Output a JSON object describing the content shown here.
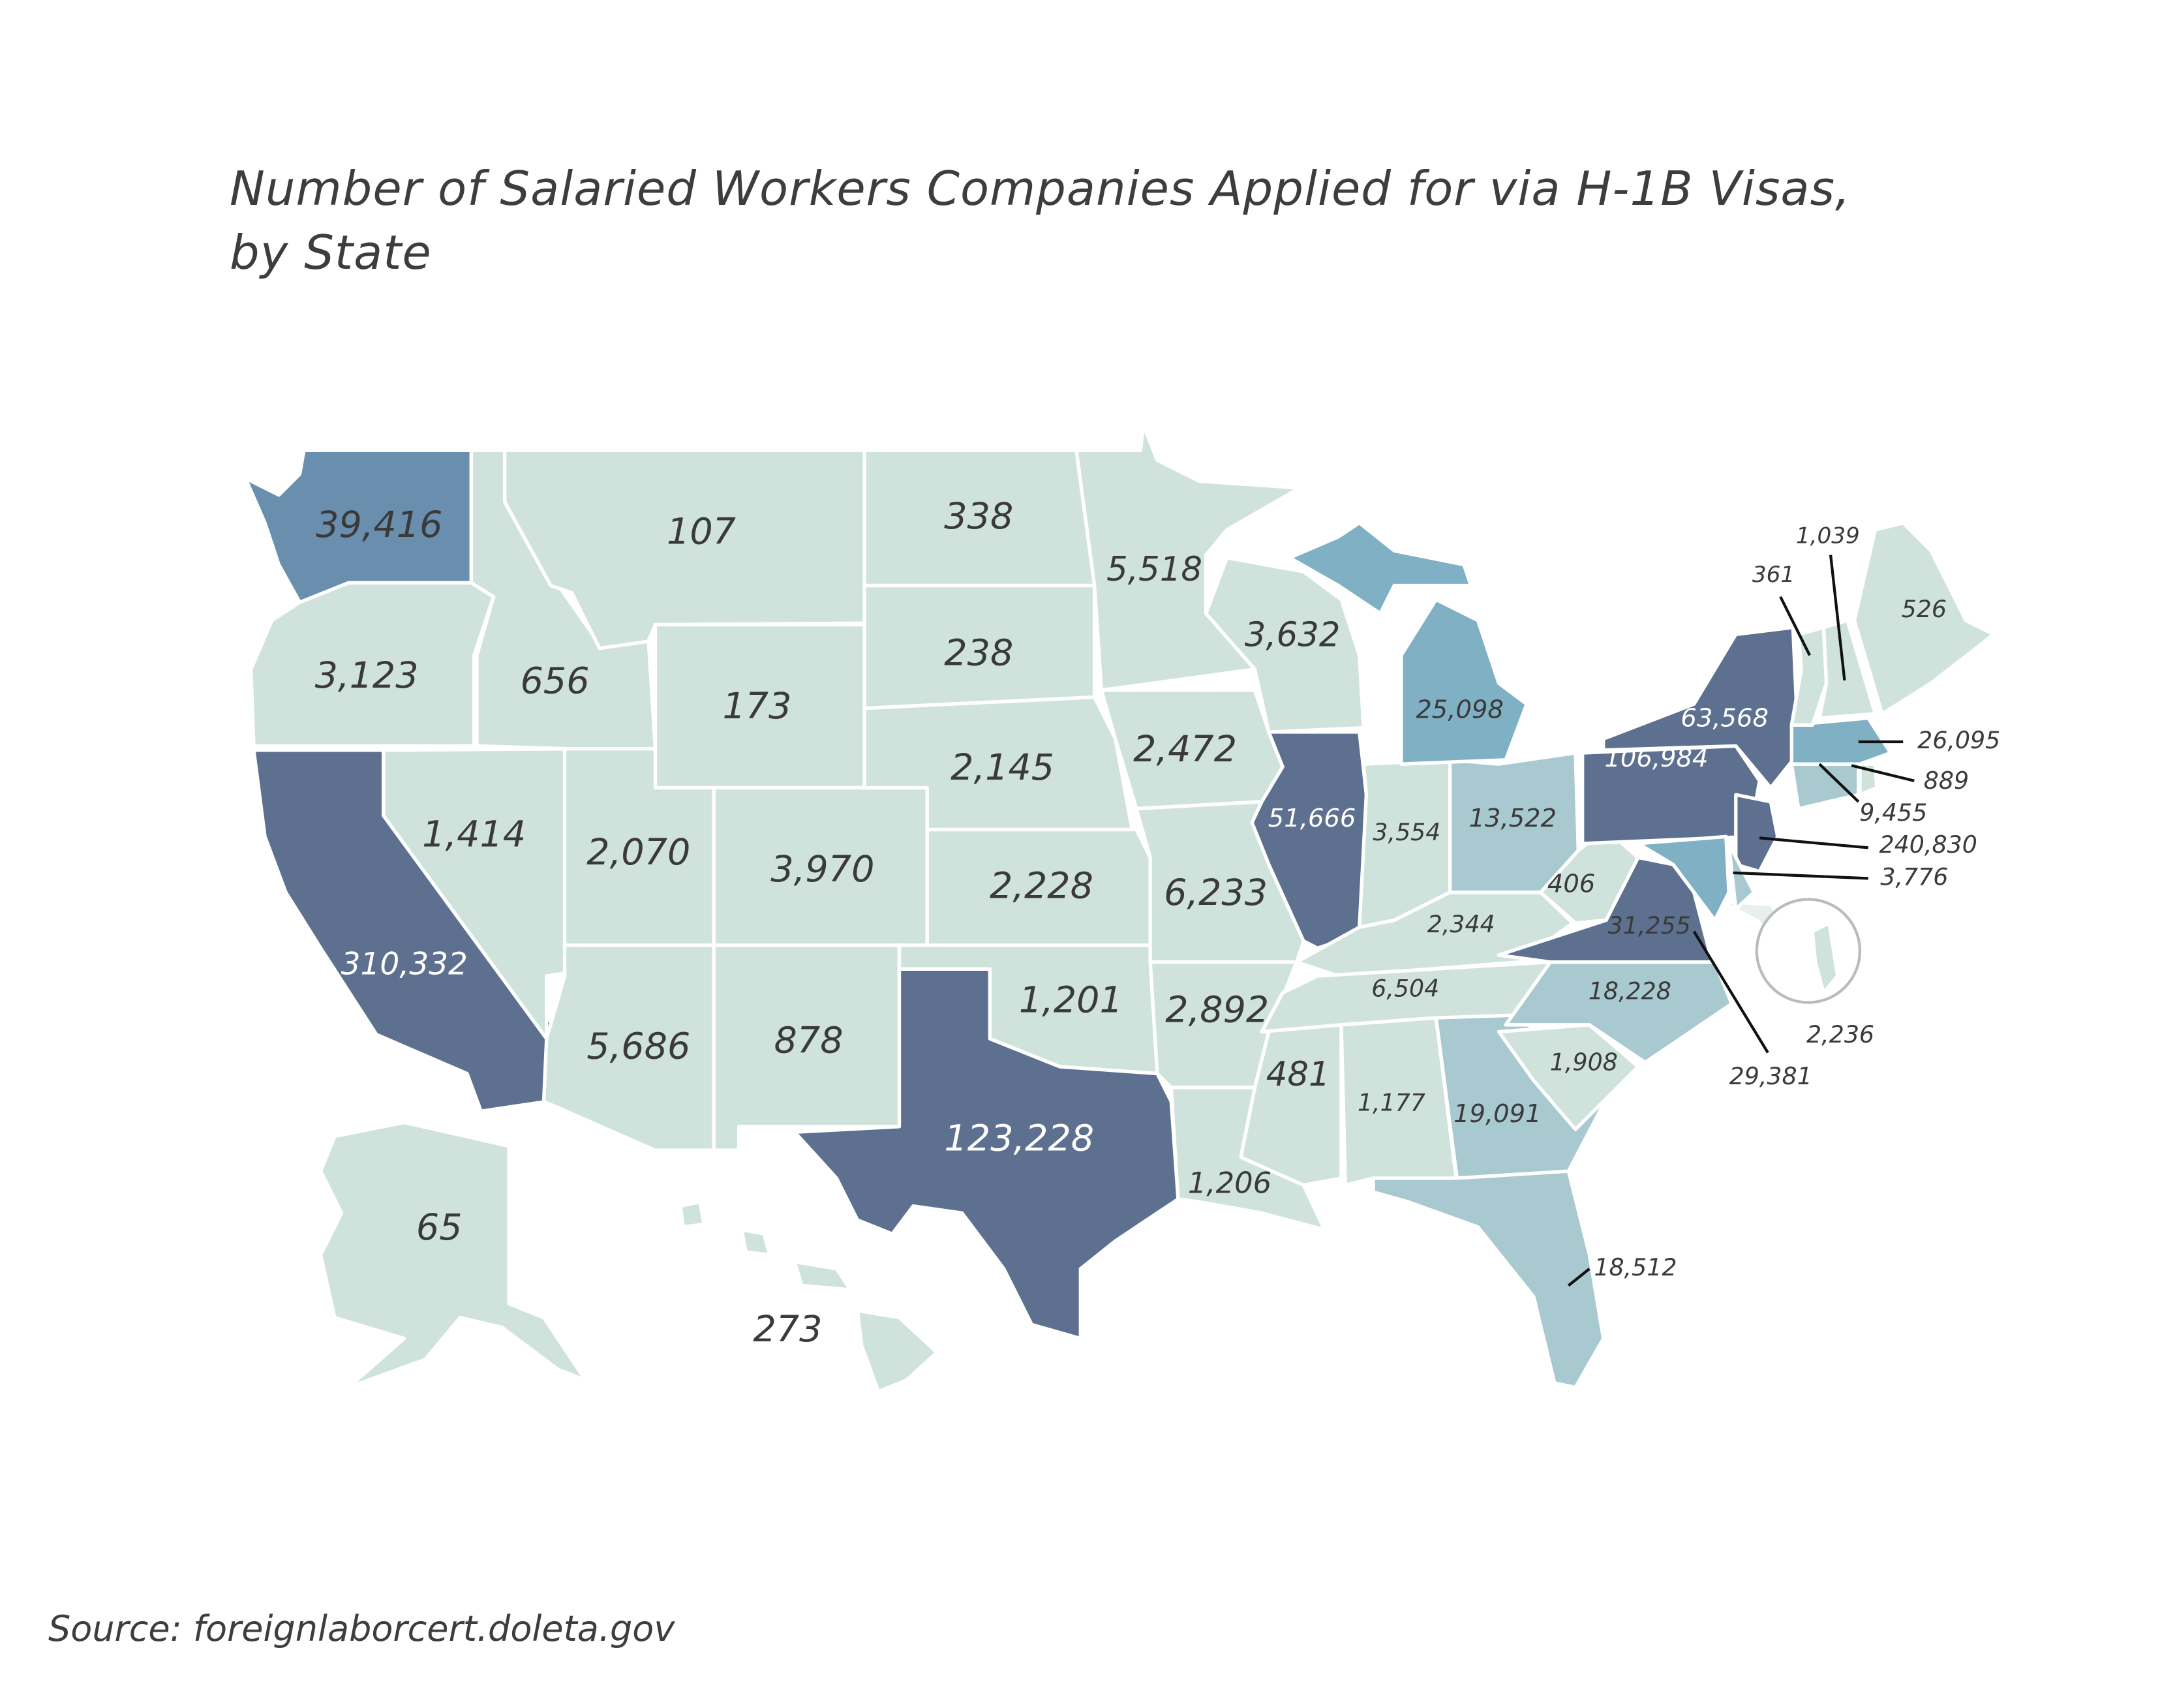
{
  "title_lines": [
    "Number of Salaried Workers Companies Applied for via H-1B Visas,",
    "by State"
  ],
  "source": "Source: foreignlaborcert.doleta.gov",
  "states": [
    {
      "label": "39,416",
      "color": "#6a8fae"
    },
    {
      "label": "3,123",
      "color": "#cfe3dc"
    },
    {
      "label": "310,332",
      "color": "#5d7090"
    },
    {
      "label": "656",
      "color": "#cfe3dc"
    },
    {
      "label": "1,414",
      "color": "#cfe3dc"
    },
    {
      "label": "107",
      "color": "#cfe3dc"
    },
    {
      "label": "173",
      "color": "#cfe3dc"
    },
    {
      "label": "2,070",
      "color": "#cfe3dc"
    },
    {
      "label": "3,970",
      "color": "#cfe3dc"
    },
    {
      "label": "5,686",
      "color": "#cfe3dc"
    },
    {
      "label": "878",
      "color": "#cfe3dc"
    },
    {
      "label": "338",
      "color": "#cfe3dc"
    },
    {
      "label": "238",
      "color": "#cfe3dc"
    },
    {
      "label": "2,145",
      "color": "#cfe3dc"
    },
    {
      "label": "2,228",
      "color": "#cfe3dc"
    },
    {
      "label": "1,201",
      "color": "#cfe3dc"
    },
    {
      "label": "123,228",
      "color": "#5d7090"
    },
    {
      "label": "5,518",
      "color": "#cfe3dc"
    },
    {
      "label": "3,632",
      "color": "#cfe3dc"
    },
    {
      "label": "2,472",
      "color": "#cfe3dc"
    },
    {
      "label": "6,233",
      "color": "#cfe3dc"
    },
    {
      "label": "2,892",
      "color": "#cfe3dc"
    },
    {
      "label": "1,206",
      "color": "#cfe3dc"
    },
    {
      "label": "51,666",
      "color": "#5d7090"
    },
    {
      "label": "3,554",
      "color": "#cfe3dc"
    },
    {
      "label": "13,522",
      "color": "#a8c9cf"
    },
    {
      "label": "2,344",
      "color": "#cfe3dc"
    },
    {
      "label": "406",
      "color": "#cfe3dc"
    },
    {
      "label": "6,504",
      "color": "#cfe3dc"
    },
    {
      "label": "481",
      "color": "#cfe3dc"
    },
    {
      "label": "1,177",
      "color": "#cfe3dc"
    },
    {
      "label": "19,091",
      "color": "#a8c9cf"
    },
    {
      "label": "18,512",
      "color": "#a8c9cf"
    },
    {
      "label": "1,908",
      "color": "#cfe3dc"
    },
    {
      "label": "18,228",
      "color": "#a8c9cf"
    },
    {
      "label": "31,255",
      "color": "#5d7090"
    },
    {
      "label": "25,098",
      "color": "#7fb0c4"
    },
    {
      "label": "106,984",
      "color": "#5d7090"
    },
    {
      "label": "63,568",
      "color": "#5d7090"
    },
    {
      "label": "240,830",
      "color": "#5d7090"
    },
    {
      "label": "3,776",
      "color": "#a8c9cf"
    },
    {
      "label": "29,381",
      "color": "#7fb0c4"
    },
    {
      "label": "2,236",
      "color": "#cfe3dc"
    },
    {
      "label": "9,455",
      "color": "#a8c9cf"
    },
    {
      "label": "889",
      "color": "#cfe3dc"
    },
    {
      "label": "26,095",
      "color": "#7fb0c4"
    },
    {
      "label": "361",
      "color": "#cfe3dc"
    },
    {
      "label": "1,039",
      "color": "#cfe3dc"
    },
    {
      "label": "526",
      "color": "#cfe3dc"
    },
    {
      "label": "65",
      "color": "#cfe3dc"
    },
    {
      "label": "273",
      "color": "#cfe3dc"
    }
  ]
}
